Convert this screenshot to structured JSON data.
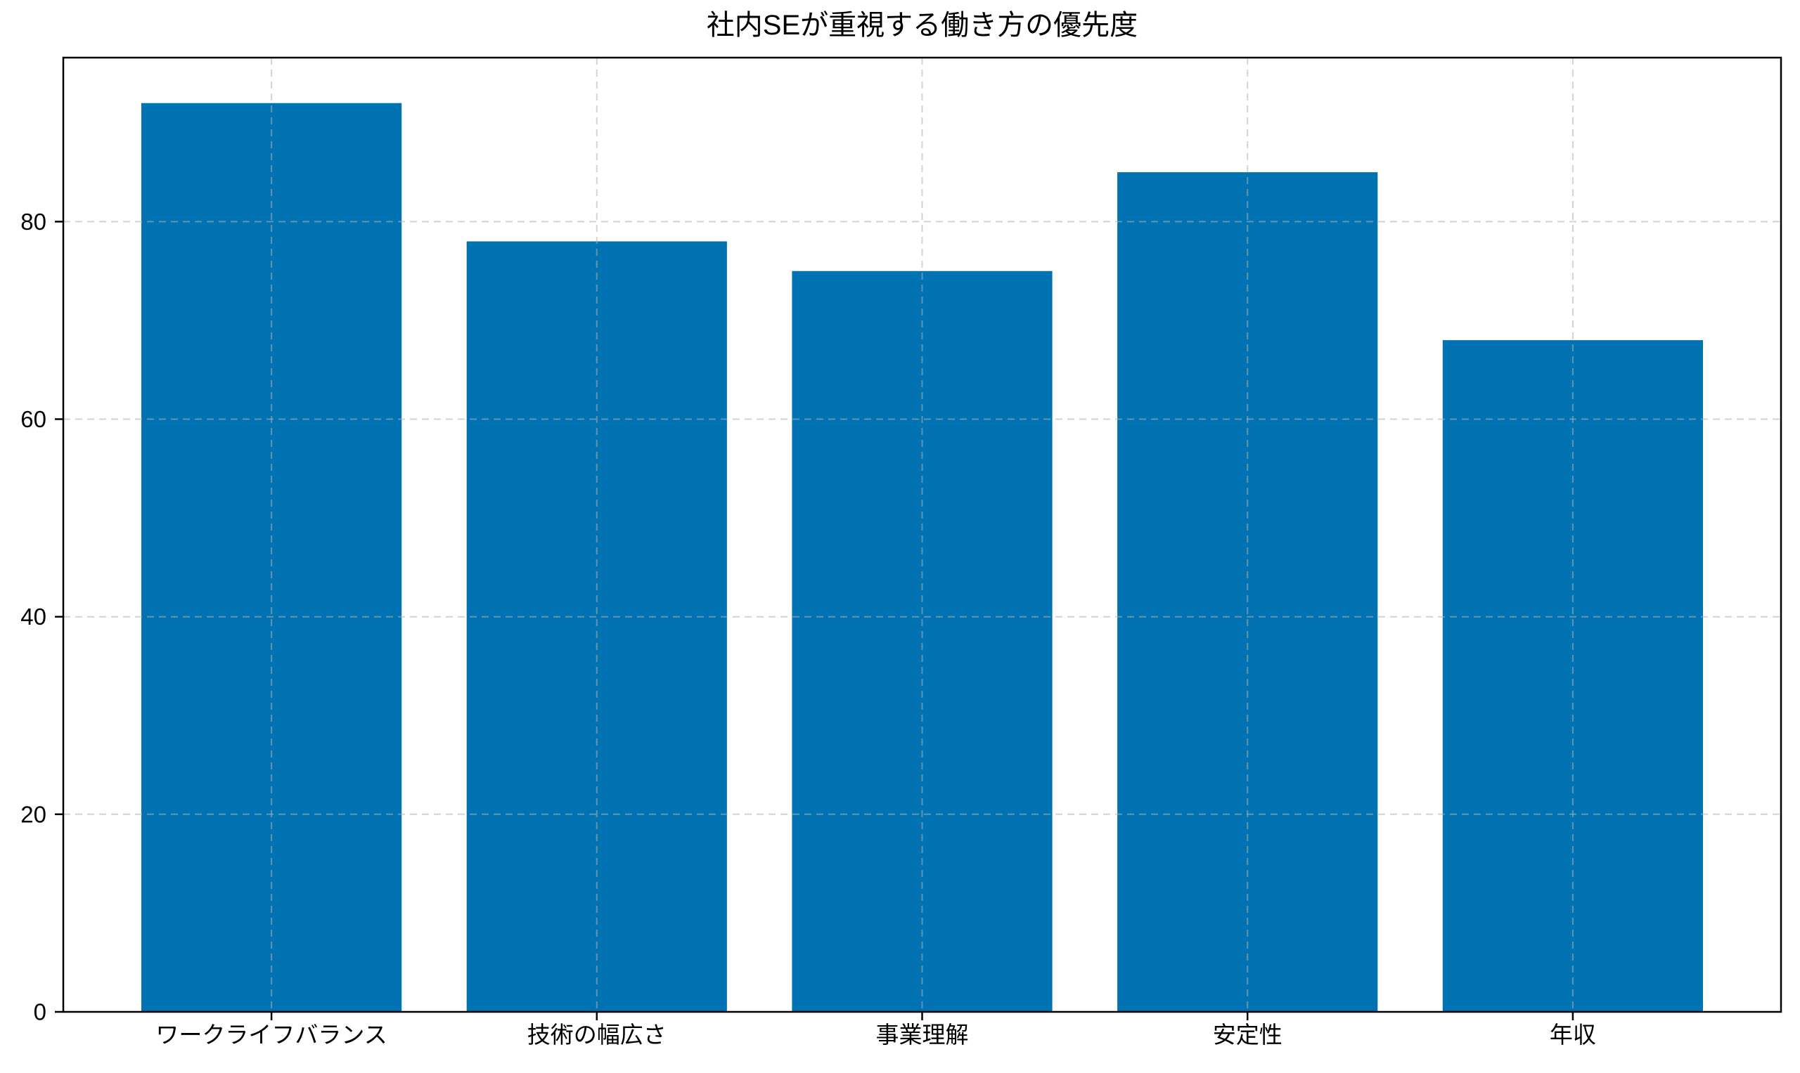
{
  "chart_data": {
    "type": "bar",
    "title": "社内SEが重視する働き方の優先度",
    "categories": [
      "ワークライフバランス",
      "技術の幅広さ",
      "事業理解",
      "安定性",
      "年収"
    ],
    "values": [
      92,
      78,
      75,
      85,
      68
    ],
    "xlabel": "",
    "ylabel": "",
    "yticks": [
      0,
      20,
      40,
      60,
      80
    ],
    "ylim": [
      0,
      96.6
    ],
    "grid": true,
    "grid_linestyle": "dashed",
    "legend_position": "none",
    "bar_color": "#0173b2",
    "grid_color": "#b0b0b0",
    "spine_color": "#000000",
    "text_color": "#000000",
    "background_color": "#ffffff"
  }
}
